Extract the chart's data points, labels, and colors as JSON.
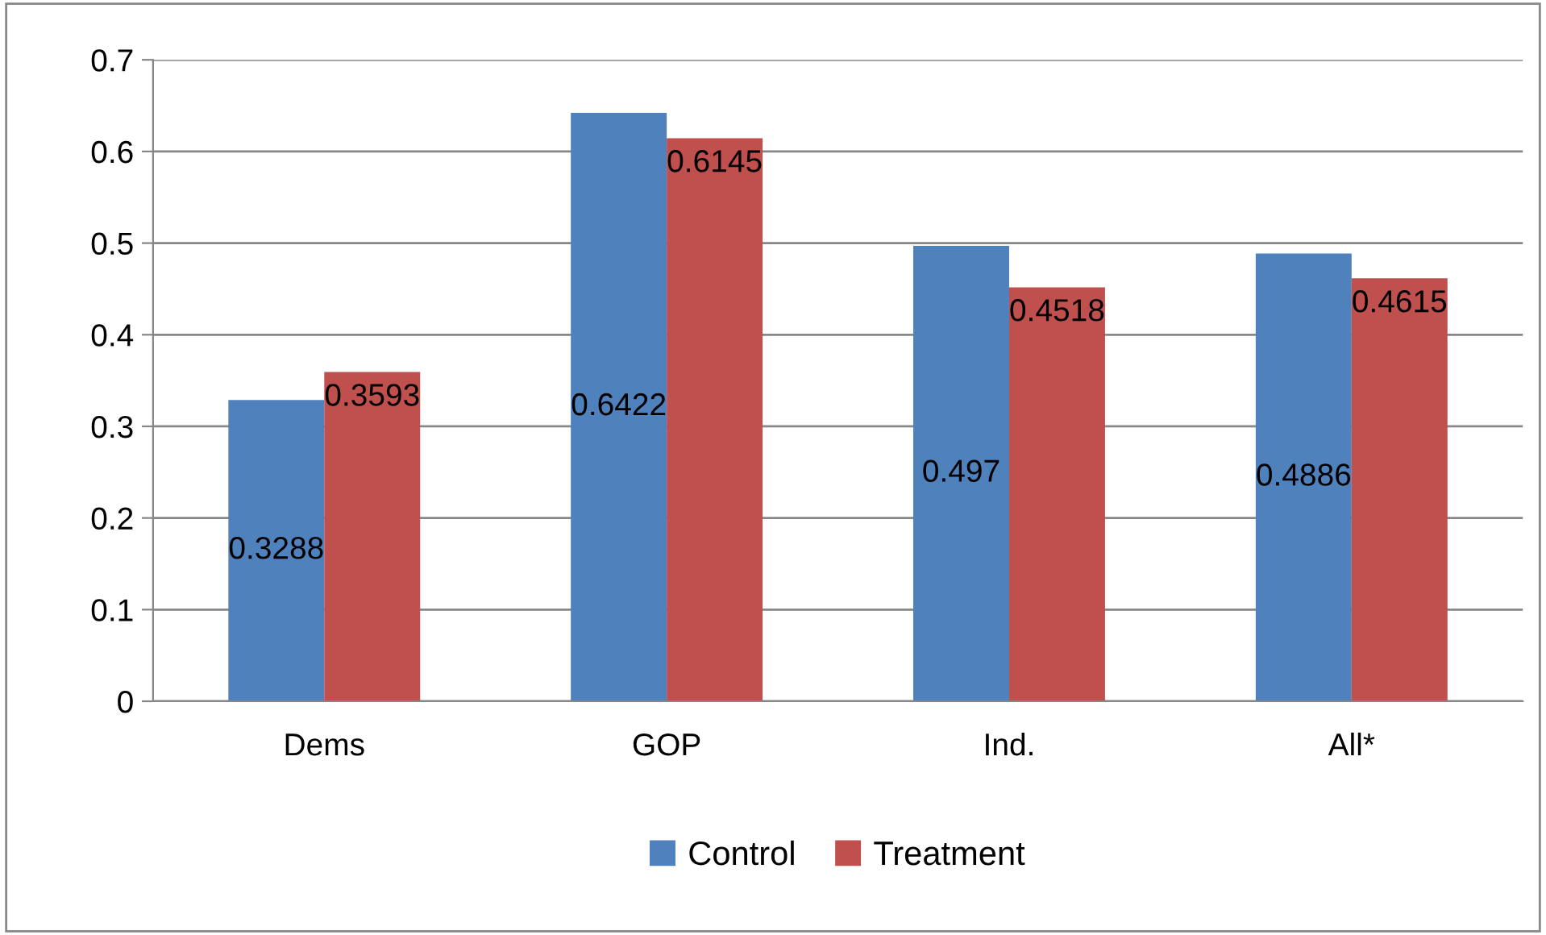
{
  "chart_data": {
    "type": "bar",
    "categories": [
      "Dems",
      "GOP",
      "Ind.",
      "All*"
    ],
    "series": [
      {
        "name": "Control",
        "color": "#4f81bd",
        "values": [
          0.3288,
          0.6422,
          0.497,
          0.4886
        ]
      },
      {
        "name": "Treatment",
        "color": "#c0504d",
        "values": [
          0.3593,
          0.6145,
          0.4518,
          0.4615
        ]
      }
    ],
    "ylim": [
      0,
      0.7
    ],
    "yticks": [
      {
        "value": 0,
        "label": "0"
      },
      0.1,
      0.2,
      0.3,
      0.4,
      0.5,
      0.6,
      0.7
    ],
    "grid": "y",
    "legend": "bottom",
    "data_labels": true
  }
}
